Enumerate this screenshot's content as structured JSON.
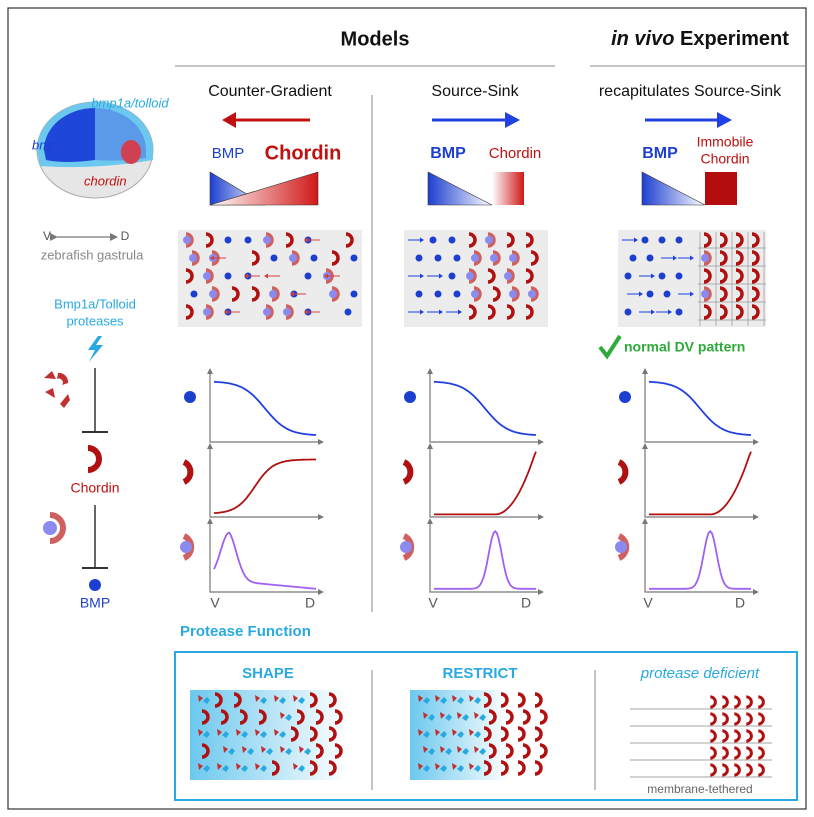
{
  "header": {
    "models": "Models",
    "experiment_italic": "in vivo",
    "experiment": "Experiment"
  },
  "left_panel": {
    "bmp1a_tolloid": "bmp1a/tolloid",
    "bmp": "bmp",
    "chordin": "chordin",
    "v": "V",
    "d": "D",
    "caption": "zebrafish gastrula",
    "proteases": [
      "Bmp1a/Tolloid",
      "proteases"
    ],
    "chordin_label": "Chordin",
    "bmp_label": "BMP"
  },
  "columns": [
    {
      "title": "Counter-Gradient",
      "bmp": "BMP",
      "chordin": [
        "Chordin"
      ],
      "v": "V",
      "d": "D"
    },
    {
      "title": "Source-Sink",
      "bmp": "BMP",
      "chordin": [
        "Chordin"
      ],
      "v": "V",
      "d": "D"
    },
    {
      "title": "recapitulates Source-Sink",
      "bmp": "BMP",
      "chordin": [
        "Immobile",
        "Chordin"
      ],
      "note": "normal DV pattern",
      "v": "V",
      "d": "D"
    }
  ],
  "protease_function": {
    "title": "Protease Function",
    "panels": [
      {
        "label": "SHAPE"
      },
      {
        "label": "RESTRICT"
      },
      {
        "label": "protease deficient",
        "caption": "membrane-tethered"
      }
    ]
  }
}
